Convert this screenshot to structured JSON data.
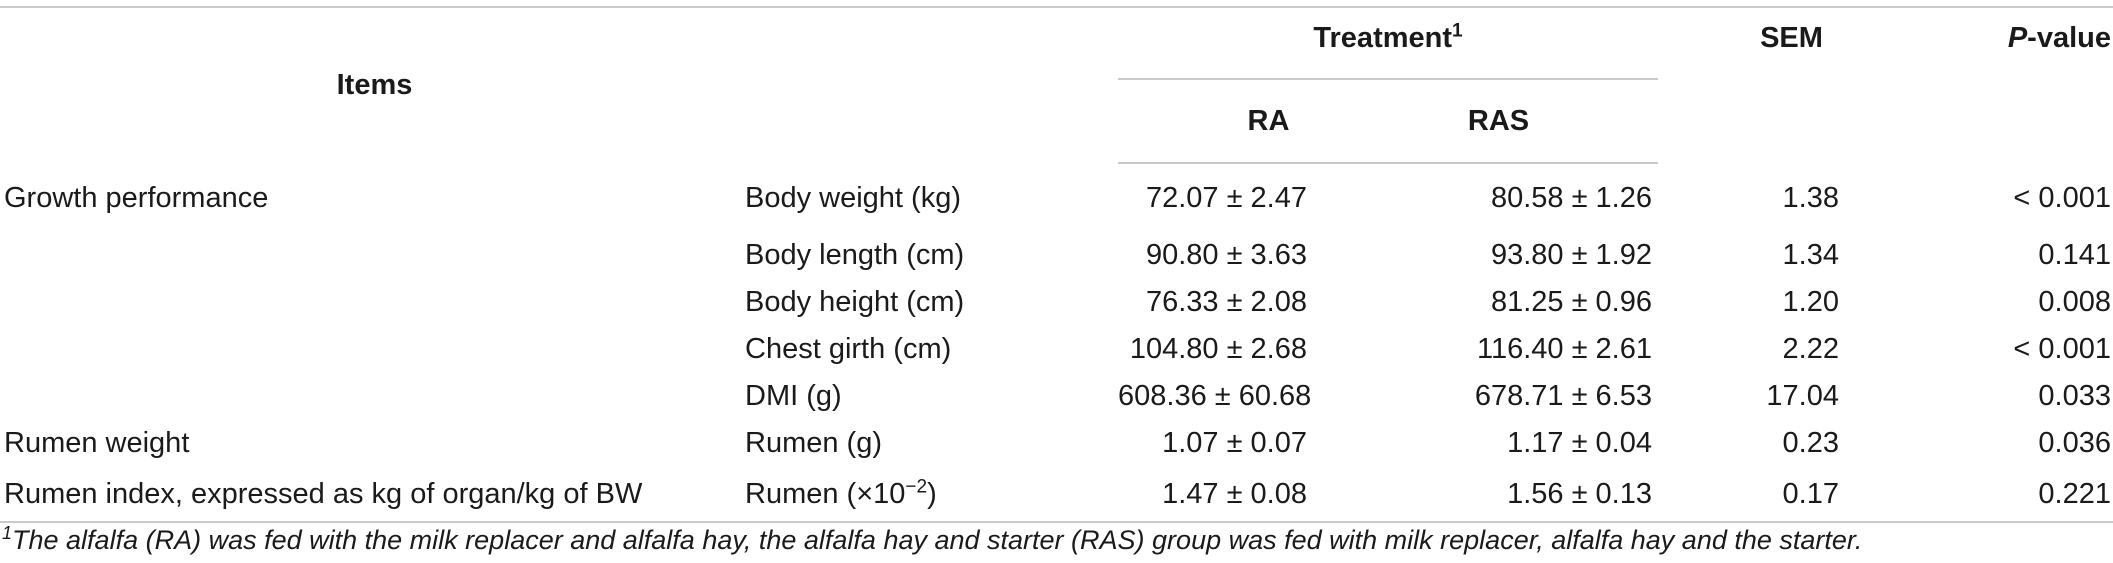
{
  "table": {
    "headers": {
      "items": "Items",
      "treatment": "Treatment",
      "treatment_sup": "1",
      "ra": "RA",
      "ras": "RAS",
      "sem": "SEM",
      "p_prefix": "P",
      "p_suffix": "-value"
    },
    "rows": [
      {
        "item": "Growth performance",
        "sub": "Body weight (kg)",
        "ra": "72.07 ± 2.47",
        "ras": "80.58 ± 1.26",
        "sem": "1.38",
        "p": "< 0.001"
      },
      {
        "item": "",
        "sub": "Body length (cm)",
        "ra": "90.80 ± 3.63",
        "ras": "93.80 ± 1.92",
        "sem": "1.34",
        "p": "0.141"
      },
      {
        "item": "",
        "sub": "Body height (cm)",
        "ra": "76.33 ± 2.08",
        "ras": "81.25 ± 0.96",
        "sem": "1.20",
        "p": "0.008"
      },
      {
        "item": "",
        "sub": "Chest girth (cm)",
        "ra": "104.80 ± 2.68",
        "ras": "116.40 ± 2.61",
        "sem": "2.22",
        "p": "< 0.001"
      },
      {
        "item": "",
        "sub": "DMI (g)",
        "ra": "608.36 ± 60.68",
        "ras": "678.71 ± 6.53",
        "sem": "17.04",
        "p": "0.033"
      },
      {
        "item": "Rumen weight",
        "sub": "Rumen (g)",
        "ra": "1.07 ± 0.07",
        "ras": "1.17 ± 0.04",
        "sem": "0.23",
        "p": "0.036"
      },
      {
        "item": "Rumen index, expressed as kg of organ/kg of BW",
        "sub": "Rumen (×10",
        "sub_sup": "−2",
        "sub_tail": ")",
        "ra": "1.47 ± 0.08",
        "ras": "1.56 ± 0.13",
        "sem": "0.17",
        "p": "0.221"
      }
    ]
  },
  "footnote": {
    "marker": "1",
    "text": "The alfalfa (RA) was fed with the milk replacer and alfalfa hay, the alfalfa hay and starter (RAS) group was fed with milk replacer, alfalfa hay and the starter."
  }
}
